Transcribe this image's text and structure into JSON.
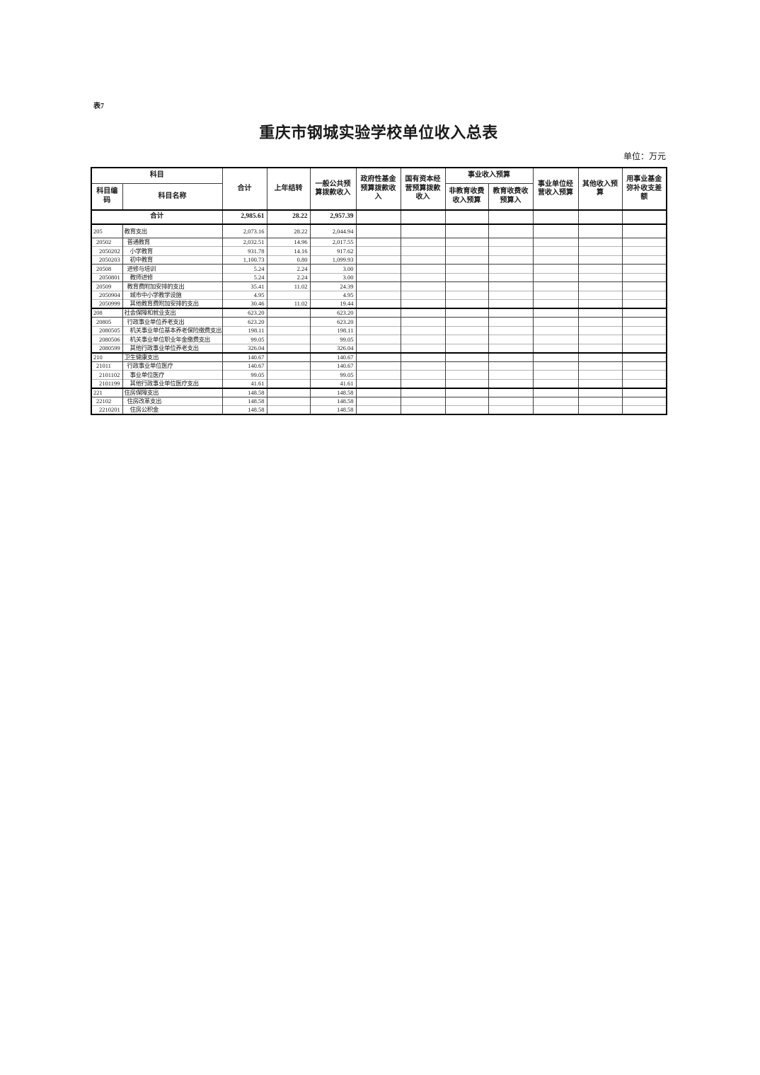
{
  "page": {
    "tag": "表7",
    "title": "重庆市钢城实验学校单位收入总表",
    "unit_note": "单位：万元"
  },
  "table": {
    "header": {
      "subject": "科目",
      "subject_code": "科目编码",
      "subject_name": "科目名称",
      "total": "合计",
      "prev_year_carryover": "上年结转",
      "general_public_budget_income": "一般公共预算拨款收入",
      "gov_fund_budget_income": "政府性基金预算拨款收入",
      "state_capital_budget_income": "国有资本经营预算拨款收入",
      "business_income_budget_group": "事业收入预算",
      "non_education_fee_income": "非教育收费收入预算",
      "education_fee_income": "教育收费收预算入",
      "business_operating_income": "事业单位经营收入预算",
      "other_income_budget": "其他收入预算",
      "fund_makeup_balance": "用事业基金弥补收支差额"
    },
    "grand_total": {
      "label": "合计",
      "total": "2,985.61",
      "prev_year_carryover": "28.22",
      "general_public_budget_income": "2,957.39"
    },
    "rows": [
      {
        "code": "205",
        "name": "教育支出",
        "level": 1,
        "total": "2,073.16",
        "carryover": "28.22",
        "general": "2,044.94"
      },
      {
        "code": "20502",
        "name": "普通教育",
        "level": 2,
        "total": "2,032.51",
        "carryover": "14.96",
        "general": "2,017.55"
      },
      {
        "code": "2050202",
        "name": "小学教育",
        "level": 3,
        "total": "931.78",
        "carryover": "14.16",
        "general": "917.62"
      },
      {
        "code": "2050203",
        "name": "初中教育",
        "level": 3,
        "total": "1,100.73",
        "carryover": "0.80",
        "general": "1,099.93"
      },
      {
        "code": "20508",
        "name": "进修与培训",
        "level": 2,
        "total": "5.24",
        "carryover": "2.24",
        "general": "3.00"
      },
      {
        "code": "2050801",
        "name": "教师进修",
        "level": 3,
        "total": "5.24",
        "carryover": "2.24",
        "general": "3.00"
      },
      {
        "code": "20509",
        "name": "教育费附加安排的支出",
        "level": 2,
        "total": "35.41",
        "carryover": "11.02",
        "general": "24.39"
      },
      {
        "code": "2050904",
        "name": "城市中小学教学设施",
        "level": 3,
        "total": "4.95",
        "carryover": "",
        "general": "4.95"
      },
      {
        "code": "2050999",
        "name": "其他教育费附加安排的支出",
        "level": 3,
        "total": "30.46",
        "carryover": "11.02",
        "general": "19.44"
      },
      {
        "code": "208",
        "name": "社会保障和就业支出",
        "level": 1,
        "total": "623.20",
        "carryover": "",
        "general": "623.20"
      },
      {
        "code": "20805",
        "name": "行政事业单位养老支出",
        "level": 2,
        "total": "623.20",
        "carryover": "",
        "general": "623.20"
      },
      {
        "code": "2080505",
        "name": "机关事业单位基本养老保险缴费支出",
        "level": 3,
        "total": "198.11",
        "carryover": "",
        "general": "198.11"
      },
      {
        "code": "2080506",
        "name": "机关事业单位职业年金缴费支出",
        "level": 3,
        "total": "99.05",
        "carryover": "",
        "general": "99.05"
      },
      {
        "code": "2080599",
        "name": "其他行政事业单位养老支出",
        "level": 3,
        "total": "326.04",
        "carryover": "",
        "general": "326.04"
      },
      {
        "code": "210",
        "name": "卫生健康支出",
        "level": 1,
        "total": "140.67",
        "carryover": "",
        "general": "140.67"
      },
      {
        "code": "21011",
        "name": "行政事业单位医疗",
        "level": 2,
        "total": "140.67",
        "carryover": "",
        "general": "140.67"
      },
      {
        "code": "2101102",
        "name": "事业单位医疗",
        "level": 3,
        "total": "99.05",
        "carryover": "",
        "general": "99.05"
      },
      {
        "code": "2101199",
        "name": "其他行政事业单位医疗支出",
        "level": 3,
        "total": "41.61",
        "carryover": "",
        "general": "41.61"
      },
      {
        "code": "221",
        "name": "住房保障支出",
        "level": 1,
        "total": "148.58",
        "carryover": "",
        "general": "148.58"
      },
      {
        "code": "22102",
        "name": "住房改革支出",
        "level": 2,
        "total": "148.58",
        "carryover": "",
        "general": "148.58"
      },
      {
        "code": "2210201",
        "name": "住房公积金",
        "level": 3,
        "total": "148.58",
        "carryover": "",
        "general": "148.58"
      }
    ]
  }
}
